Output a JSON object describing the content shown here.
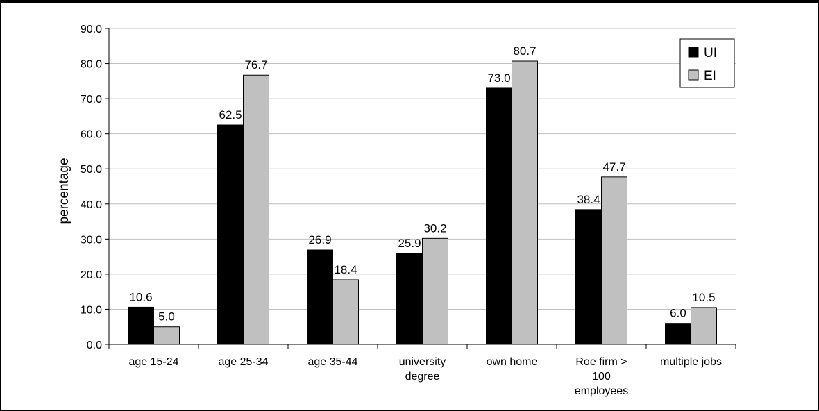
{
  "chart_data": {
    "type": "bar",
    "categories": [
      [
        "age 15-24"
      ],
      [
        "age 25-34"
      ],
      [
        "age 35-44"
      ],
      [
        "university",
        "degree"
      ],
      [
        "own home"
      ],
      [
        "Roe firm >",
        "100",
        "employees"
      ],
      [
        "multiple jobs"
      ]
    ],
    "series": [
      {
        "name": "UI",
        "values": [
          10.6,
          62.5,
          26.9,
          25.9,
          73.0,
          38.4,
          6.0
        ],
        "color": "#000000"
      },
      {
        "name": "EI",
        "values": [
          5.0,
          76.7,
          18.4,
          30.2,
          80.7,
          47.7,
          10.5
        ],
        "color": "#c0c0c0"
      }
    ],
    "ylabel": "percentage",
    "ylim": [
      0,
      90
    ],
    "yticks": [
      "0.0",
      "10.0",
      "20.0",
      "30.0",
      "40.0",
      "50.0",
      "60.0",
      "70.0",
      "80.0",
      "90.0"
    ],
    "grid": true,
    "legend_position": "top-right"
  }
}
